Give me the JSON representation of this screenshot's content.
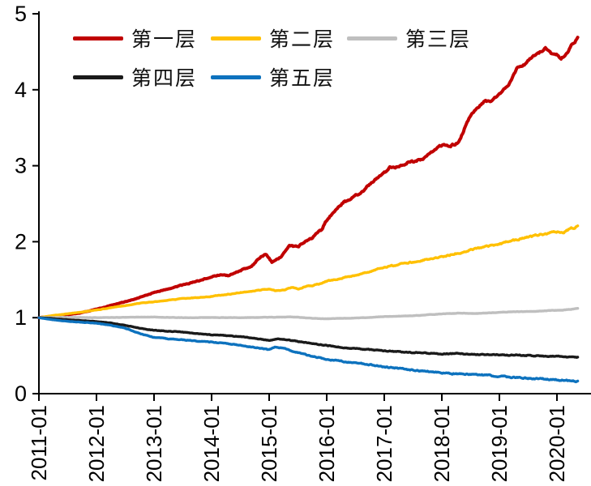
{
  "chart_data": {
    "type": "line",
    "title": "",
    "xlabel": "",
    "ylabel": "",
    "ylim": [
      0,
      5
    ],
    "y_ticks": [
      0,
      1,
      2,
      3,
      4,
      5
    ],
    "x_tick_labels": [
      "2011-01",
      "2012-01",
      "2013-01",
      "2014-01",
      "2015-01",
      "2016-01",
      "2017-01",
      "2018-01",
      "2019-01",
      "2020-01"
    ],
    "x_tick_years": [
      2011,
      2012,
      2013,
      2014,
      2015,
      2016,
      2017,
      2018,
      2019,
      2020
    ],
    "x_range_years": [
      2011.0,
      2020.36
    ],
    "grid": false,
    "legend_position": "top-left-inside-two-rows",
    "axis_color": "#000000",
    "background_color": "#ffffff",
    "series": [
      {
        "id": "layer-1",
        "name": "第一层",
        "color": "#C00000",
        "points": [
          [
            2011.0,
            1.0
          ],
          [
            2011.15,
            1.012
          ],
          [
            2011.3,
            1.025
          ],
          [
            2011.5,
            1.04
          ],
          [
            2011.7,
            1.06
          ],
          [
            2011.85,
            1.085
          ],
          [
            2012.0,
            1.11
          ],
          [
            2012.2,
            1.15
          ],
          [
            2012.4,
            1.19
          ],
          [
            2012.6,
            1.23
          ],
          [
            2012.8,
            1.28
          ],
          [
            2013.0,
            1.33
          ],
          [
            2013.2,
            1.37
          ],
          [
            2013.4,
            1.41
          ],
          [
            2013.6,
            1.45
          ],
          [
            2013.8,
            1.49
          ],
          [
            2014.0,
            1.54
          ],
          [
            2014.15,
            1.565
          ],
          [
            2014.3,
            1.555
          ],
          [
            2014.5,
            1.62
          ],
          [
            2014.7,
            1.68
          ],
          [
            2014.85,
            1.8
          ],
          [
            2014.95,
            1.83
          ],
          [
            2015.05,
            1.73
          ],
          [
            2015.2,
            1.8
          ],
          [
            2015.35,
            1.95
          ],
          [
            2015.5,
            1.93
          ],
          [
            2015.62,
            2.0
          ],
          [
            2015.75,
            2.05
          ],
          [
            2015.9,
            2.15
          ],
          [
            2016.0,
            2.28
          ],
          [
            2016.15,
            2.42
          ],
          [
            2016.3,
            2.52
          ],
          [
            2016.45,
            2.58
          ],
          [
            2016.6,
            2.65
          ],
          [
            2016.75,
            2.76
          ],
          [
            2016.9,
            2.85
          ],
          [
            2017.0,
            2.9
          ],
          [
            2017.1,
            2.99
          ],
          [
            2017.25,
            2.98
          ],
          [
            2017.4,
            3.04
          ],
          [
            2017.55,
            3.06
          ],
          [
            2017.7,
            3.1
          ],
          [
            2017.85,
            3.19
          ],
          [
            2018.0,
            3.27
          ],
          [
            2018.15,
            3.26
          ],
          [
            2018.3,
            3.31
          ],
          [
            2018.4,
            3.5
          ],
          [
            2018.5,
            3.65
          ],
          [
            2018.6,
            3.75
          ],
          [
            2018.75,
            3.86
          ],
          [
            2018.85,
            3.83
          ],
          [
            2019.0,
            3.95
          ],
          [
            2019.15,
            4.06
          ],
          [
            2019.3,
            4.28
          ],
          [
            2019.45,
            4.33
          ],
          [
            2019.55,
            4.42
          ],
          [
            2019.7,
            4.49
          ],
          [
            2019.8,
            4.55
          ],
          [
            2019.9,
            4.48
          ],
          [
            2020.0,
            4.46
          ],
          [
            2020.07,
            4.41
          ],
          [
            2020.15,
            4.46
          ],
          [
            2020.25,
            4.58
          ],
          [
            2020.36,
            4.68
          ]
        ]
      },
      {
        "id": "layer-2",
        "name": "第二层",
        "color": "#FFC000",
        "points": [
          [
            2011.0,
            1.0
          ],
          [
            2011.25,
            1.03
          ],
          [
            2011.5,
            1.05
          ],
          [
            2011.75,
            1.075
          ],
          [
            2012.0,
            1.1
          ],
          [
            2012.25,
            1.13
          ],
          [
            2012.5,
            1.16
          ],
          [
            2012.75,
            1.19
          ],
          [
            2013.0,
            1.21
          ],
          [
            2013.25,
            1.23
          ],
          [
            2013.5,
            1.25
          ],
          [
            2013.75,
            1.265
          ],
          [
            2014.0,
            1.28
          ],
          [
            2014.25,
            1.305
          ],
          [
            2014.5,
            1.33
          ],
          [
            2014.75,
            1.355
          ],
          [
            2015.0,
            1.38
          ],
          [
            2015.1,
            1.355
          ],
          [
            2015.25,
            1.365
          ],
          [
            2015.4,
            1.4
          ],
          [
            2015.5,
            1.375
          ],
          [
            2015.62,
            1.41
          ],
          [
            2015.75,
            1.42
          ],
          [
            2015.9,
            1.45
          ],
          [
            2016.0,
            1.48
          ],
          [
            2016.25,
            1.52
          ],
          [
            2016.5,
            1.555
          ],
          [
            2016.75,
            1.61
          ],
          [
            2017.0,
            1.66
          ],
          [
            2017.25,
            1.7
          ],
          [
            2017.5,
            1.735
          ],
          [
            2017.75,
            1.77
          ],
          [
            2018.0,
            1.8
          ],
          [
            2018.25,
            1.845
          ],
          [
            2018.5,
            1.89
          ],
          [
            2018.75,
            1.93
          ],
          [
            2019.0,
            1.97
          ],
          [
            2019.25,
            2.02
          ],
          [
            2019.5,
            2.06
          ],
          [
            2019.75,
            2.1
          ],
          [
            2020.0,
            2.13
          ],
          [
            2020.1,
            2.115
          ],
          [
            2020.2,
            2.16
          ],
          [
            2020.36,
            2.2
          ]
        ]
      },
      {
        "id": "layer-3",
        "name": "第三层",
        "color": "#BFBFBF",
        "points": [
          [
            2011.0,
            1.0
          ],
          [
            2011.5,
            1.005
          ],
          [
            2012.0,
            1.0
          ],
          [
            2012.5,
            1.005
          ],
          [
            2013.0,
            1.008
          ],
          [
            2013.5,
            1.0
          ],
          [
            2014.0,
            1.002
          ],
          [
            2014.5,
            1.0
          ],
          [
            2015.0,
            1.005
          ],
          [
            2015.4,
            1.01
          ],
          [
            2015.7,
            0.995
          ],
          [
            2015.9,
            0.985
          ],
          [
            2016.2,
            0.99
          ],
          [
            2016.5,
            0.995
          ],
          [
            2016.8,
            1.005
          ],
          [
            2017.0,
            1.015
          ],
          [
            2017.3,
            1.02
          ],
          [
            2017.6,
            1.03
          ],
          [
            2018.0,
            1.05
          ],
          [
            2018.3,
            1.06
          ],
          [
            2018.6,
            1.055
          ],
          [
            2019.0,
            1.07
          ],
          [
            2019.3,
            1.08
          ],
          [
            2019.6,
            1.08
          ],
          [
            2019.9,
            1.095
          ],
          [
            2020.1,
            1.1
          ],
          [
            2020.36,
            1.12
          ]
        ]
      },
      {
        "id": "layer-4",
        "name": "第四层",
        "color": "#1A1A1A",
        "points": [
          [
            2011.0,
            1.0
          ],
          [
            2011.25,
            0.988
          ],
          [
            2011.5,
            0.972
          ],
          [
            2011.75,
            0.96
          ],
          [
            2012.0,
            0.95
          ],
          [
            2012.25,
            0.93
          ],
          [
            2012.5,
            0.9
          ],
          [
            2012.75,
            0.862
          ],
          [
            2013.0,
            0.835
          ],
          [
            2013.25,
            0.822
          ],
          [
            2013.5,
            0.81
          ],
          [
            2013.75,
            0.79
          ],
          [
            2014.0,
            0.775
          ],
          [
            2014.25,
            0.763
          ],
          [
            2014.5,
            0.752
          ],
          [
            2014.75,
            0.73
          ],
          [
            2015.0,
            0.7
          ],
          [
            2015.15,
            0.72
          ],
          [
            2015.3,
            0.71
          ],
          [
            2015.5,
            0.688
          ],
          [
            2015.75,
            0.66
          ],
          [
            2016.0,
            0.635
          ],
          [
            2016.25,
            0.612
          ],
          [
            2016.5,
            0.593
          ],
          [
            2016.75,
            0.578
          ],
          [
            2017.0,
            0.563
          ],
          [
            2017.25,
            0.552
          ],
          [
            2017.5,
            0.543
          ],
          [
            2017.75,
            0.532
          ],
          [
            2018.0,
            0.523
          ],
          [
            2018.25,
            0.528
          ],
          [
            2018.5,
            0.52
          ],
          [
            2018.75,
            0.515
          ],
          [
            2019.0,
            0.512
          ],
          [
            2019.5,
            0.502
          ],
          [
            2020.0,
            0.49
          ],
          [
            2020.36,
            0.482
          ]
        ]
      },
      {
        "id": "layer-5",
        "name": "第五层",
        "color": "#0D72BE",
        "points": [
          [
            2011.0,
            1.0
          ],
          [
            2011.25,
            0.972
          ],
          [
            2011.5,
            0.952
          ],
          [
            2011.75,
            0.94
          ],
          [
            2012.0,
            0.928
          ],
          [
            2012.25,
            0.9
          ],
          [
            2012.5,
            0.862
          ],
          [
            2012.75,
            0.792
          ],
          [
            2013.0,
            0.74
          ],
          [
            2013.25,
            0.722
          ],
          [
            2013.5,
            0.708
          ],
          [
            2013.75,
            0.692
          ],
          [
            2014.0,
            0.678
          ],
          [
            2014.25,
            0.66
          ],
          [
            2014.5,
            0.638
          ],
          [
            2014.75,
            0.608
          ],
          [
            2015.0,
            0.578
          ],
          [
            2015.1,
            0.615
          ],
          [
            2015.25,
            0.6
          ],
          [
            2015.4,
            0.56
          ],
          [
            2015.6,
            0.52
          ],
          [
            2015.8,
            0.483
          ],
          [
            2016.0,
            0.455
          ],
          [
            2016.25,
            0.428
          ],
          [
            2016.5,
            0.408
          ],
          [
            2016.75,
            0.382
          ],
          [
            2017.0,
            0.352
          ],
          [
            2017.25,
            0.332
          ],
          [
            2017.5,
            0.312
          ],
          [
            2017.75,
            0.292
          ],
          [
            2018.0,
            0.272
          ],
          [
            2018.25,
            0.262
          ],
          [
            2018.5,
            0.252
          ],
          [
            2018.75,
            0.242
          ],
          [
            2019.0,
            0.23
          ],
          [
            2019.25,
            0.213
          ],
          [
            2019.5,
            0.202
          ],
          [
            2019.75,
            0.192
          ],
          [
            2020.0,
            0.182
          ],
          [
            2020.2,
            0.172
          ],
          [
            2020.36,
            0.165
          ]
        ]
      }
    ]
  }
}
